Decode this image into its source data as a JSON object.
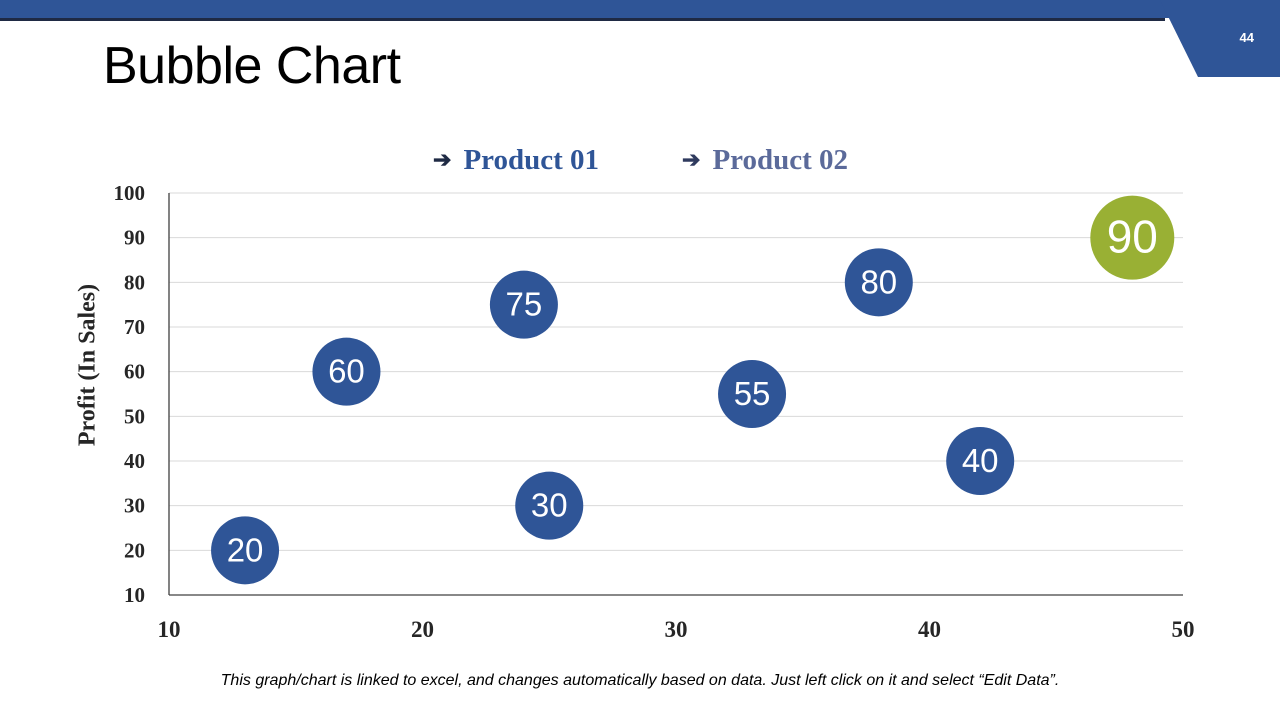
{
  "slide": {
    "title": "Bubble Chart",
    "page_number": "44",
    "footnote": "This graph/chart is linked to excel, and changes automatically based on data. Just left click on it and select “Edit Data”.",
    "legend_marker": "➔"
  },
  "colors": {
    "brand": "#2f5597",
    "product01": "#2f5597",
    "product02": "#99b034",
    "grid": "#d9d9d9",
    "axis": "#404040",
    "bubble_text": "#ffffff"
  },
  "chart_data": {
    "type": "scatter",
    "subtype": "bubble",
    "title": "",
    "xlabel": "",
    "ylabel": "Profit  (In Sales)",
    "xlim": [
      10,
      50
    ],
    "ylim": [
      10,
      100
    ],
    "x_ticks": [
      "10",
      "20",
      "30",
      "40",
      "50"
    ],
    "y_ticks": [
      "10",
      "20",
      "30",
      "40",
      "50",
      "60",
      "70",
      "80",
      "90",
      "100"
    ],
    "grid": true,
    "legend_position": "top-center",
    "series": [
      {
        "name": "Product 01",
        "points": [
          {
            "x": 13,
            "y": 20,
            "label": "20"
          },
          {
            "x": 17,
            "y": 60,
            "label": "60"
          },
          {
            "x": 24,
            "y": 75,
            "label": "75"
          },
          {
            "x": 25,
            "y": 30,
            "label": "30"
          },
          {
            "x": 33,
            "y": 55,
            "label": "55"
          },
          {
            "x": 38,
            "y": 80,
            "label": "80"
          },
          {
            "x": 42,
            "y": 40,
            "label": "40"
          }
        ]
      },
      {
        "name": "Product 02",
        "points": [
          {
            "x": 48,
            "y": 90,
            "label": "90"
          }
        ]
      }
    ]
  }
}
